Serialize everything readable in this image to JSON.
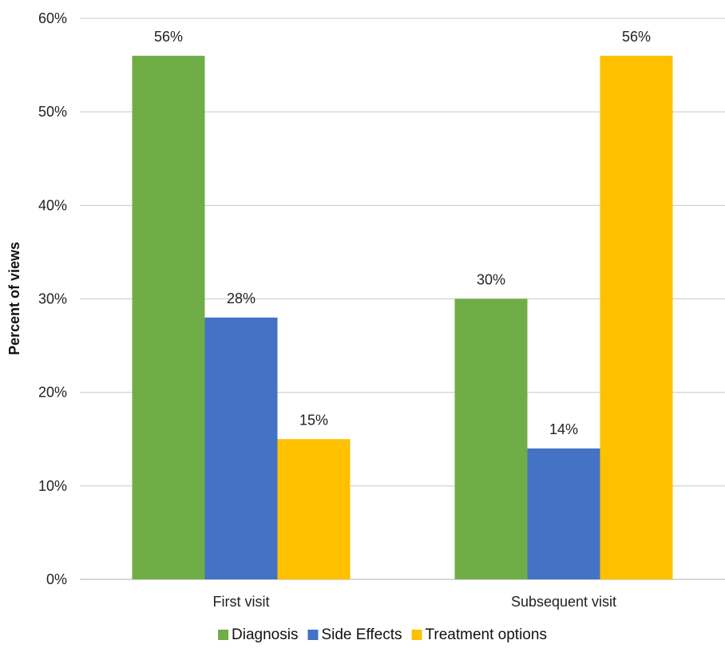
{
  "chart_data": {
    "type": "bar",
    "title": "",
    "xlabel": "",
    "ylabel": "Percent of views",
    "categories": [
      "First visit",
      "Subsequent visit"
    ],
    "series": [
      {
        "name": "Diagnosis",
        "color": "#70AD47",
        "values": [
          56,
          30
        ],
        "labels": [
          "56%",
          "30%"
        ]
      },
      {
        "name": "Side Effects",
        "color": "#4472C4",
        "values": [
          28,
          14
        ],
        "labels": [
          "28%",
          "14%"
        ]
      },
      {
        "name": "Treatment options",
        "color": "#FFC000",
        "values": [
          15,
          56
        ],
        "labels": [
          "15%",
          "56%"
        ]
      }
    ],
    "ylim": [
      0,
      60
    ],
    "yticks": [
      0,
      10,
      20,
      30,
      40,
      50,
      60
    ],
    "ytick_labels": [
      "0%",
      "10%",
      "20%",
      "30%",
      "40%",
      "50%",
      "60%"
    ],
    "grid": true,
    "legend_position": "bottom"
  }
}
